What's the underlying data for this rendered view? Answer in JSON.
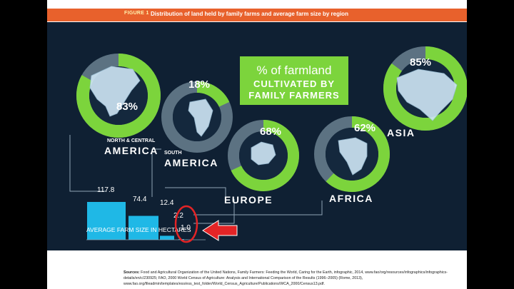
{
  "figure": {
    "label": "FIGURE 1",
    "title": "Distribution of land held by family farms and average farm size by region"
  },
  "chart_data": {
    "type": "bar",
    "title_lines": [
      "% of farmland",
      "CULTIVATED BY",
      "FAMILY FARMERS"
    ],
    "regions": [
      {
        "id": "nc-america",
        "name_top": "NORTH & CENTRAL",
        "name_main": "AMERICA",
        "farmland_pct": 83,
        "pct_label": "83%",
        "farm_size": 117.8,
        "farm_size_label": "117.8"
      },
      {
        "id": "s-america",
        "name_top": "SOUTH",
        "name_main": "AMERICA",
        "farmland_pct": 18,
        "pct_label": "18%",
        "farm_size": 74.4,
        "farm_size_label": "74.4"
      },
      {
        "id": "europe",
        "name_top": "",
        "name_main": "EUROPE",
        "farmland_pct": 68,
        "pct_label": "68%",
        "farm_size": 12.4,
        "farm_size_label": "12.4"
      },
      {
        "id": "africa",
        "name_top": "",
        "name_main": "AFRICA",
        "farmland_pct": 62,
        "pct_label": "62%",
        "farm_size": 2.2,
        "farm_size_label": "2.2"
      },
      {
        "id": "asia",
        "name_top": "",
        "name_main": "ASIA",
        "farmland_pct": 85,
        "pct_label": "85%",
        "farm_size": 1.0,
        "farm_size_label": "1.0"
      }
    ],
    "bar_axis_label": "AVERAGE FARM SIZE IN HECTARES",
    "colors": {
      "background": "#0f2033",
      "donut_fill": "#7cd43c",
      "donut_rest": "#5c7282",
      "bar": "#1fb8e6",
      "connector": "#8fa4b4",
      "title_box": "#7cd43c",
      "annotation": "#e32426"
    }
  },
  "sources": {
    "label": "Sources:",
    "text": "Food and Agricultural Organization of the United Nations, Family Farmers: Feeding the World, Caring for the Earth, infographic, 2014, www.fao/org/resources/infographics/infographics-details/en/c/230925; FAO, 2000 World Census of Agriculture: Analysis and International Comparison of the Results (1996–2005) (Rome, 2013), www.fao.org/fileadmin/templates/ess/ess_test_folder/World_Census_Agriculture/Publications/WCA_2000/Census13.pdf."
  }
}
